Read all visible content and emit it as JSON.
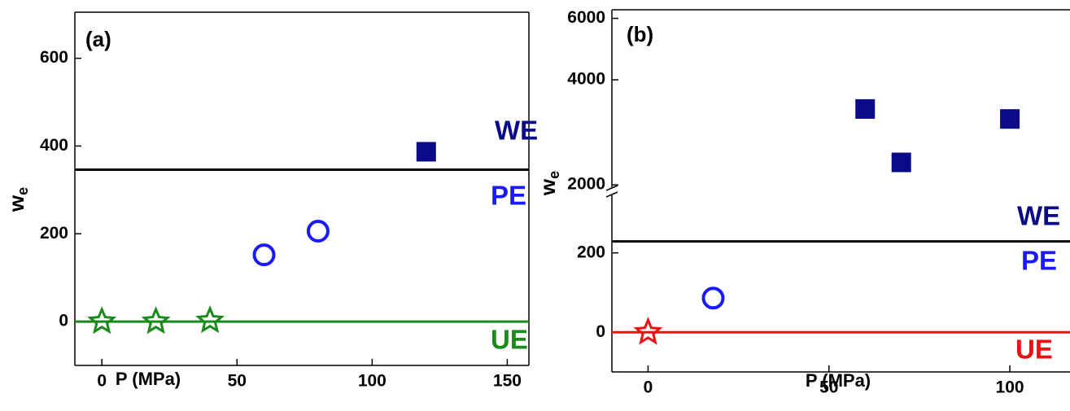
{
  "chart_data": [
    {
      "type": "scatter",
      "panel_label": "(a)",
      "xlabel": "P (MPa)",
      "ylabel": {
        "main": "w",
        "sub": "e"
      },
      "xlim": [
        -10,
        158
      ],
      "xticks": [
        0,
        50,
        100,
        150
      ],
      "y_segments": [
        {
          "ylim": [
            -100,
            705
          ],
          "yticks": [
            0,
            200,
            400,
            600
          ]
        }
      ],
      "series": [
        {
          "marker": "star",
          "color": "#1a8a1a",
          "x": [
            0,
            20,
            40
          ],
          "values": [
            0,
            0,
            2
          ]
        },
        {
          "marker": "circle",
          "color": "#1a1aff",
          "x": [
            60,
            80
          ],
          "values": [
            152,
            206
          ]
        },
        {
          "marker": "square",
          "color": "#0b0b8a",
          "x": [
            120
          ],
          "values": [
            387
          ]
        }
      ],
      "hlines": [
        {
          "value": 346,
          "color": "#000000"
        },
        {
          "value": 0,
          "color": "#1a8a1a"
        }
      ],
      "annotations": [
        {
          "text": "WE",
          "color": "#0b0b8a"
        },
        {
          "text": "PE",
          "color": "#1a1aff"
        },
        {
          "text": "UE",
          "color": "#1a8a1a"
        }
      ]
    },
    {
      "type": "scatter",
      "panel_label": "(b)",
      "xlabel": "P (MPa)",
      "ylabel": {
        "main": "w",
        "sub": "e"
      },
      "xlim": [
        -10,
        120
      ],
      "xticks": [
        0,
        50,
        100
      ],
      "y_segments": [
        {
          "ylim": [
            -100,
            345
          ],
          "yticks": [
            0,
            200
          ]
        },
        {
          "ylim": [
            1970,
            6350
          ],
          "yticks": [
            2000,
            4000,
            6000
          ],
          "log": true
        }
      ],
      "series": [
        {
          "marker": "star",
          "color": "#ee1111",
          "x": [
            0
          ],
          "values": [
            0
          ]
        },
        {
          "marker": "circle",
          "color": "#1a1aff",
          "x": [
            18
          ],
          "values": [
            86
          ]
        },
        {
          "marker": "square",
          "color": "#0b0b8a",
          "x": [
            60,
            70,
            100
          ],
          "values": [
            3300,
            2320,
            3090
          ]
        }
      ],
      "hlines": [
        {
          "value": 229,
          "color": "#000000"
        },
        {
          "value": 0,
          "color": "#ee1111"
        }
      ],
      "annotations": [
        {
          "text": "WE",
          "color": "#0b0b8a"
        },
        {
          "text": "PE",
          "color": "#1a1aff"
        },
        {
          "text": "UE",
          "color": "#ee1111"
        }
      ]
    }
  ]
}
